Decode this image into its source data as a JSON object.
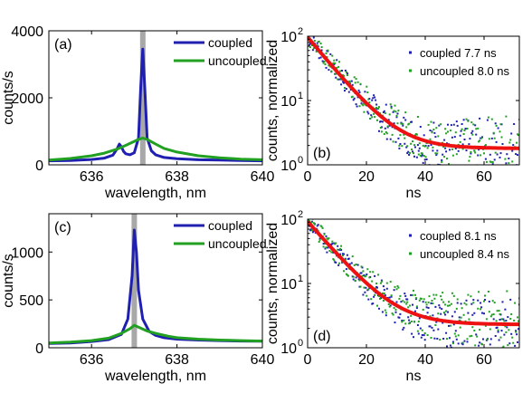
{
  "colors": {
    "coupled": "#1f1fb0",
    "uncoupled": "#22a022",
    "fit": "#ee1111",
    "marker": "#a8a8a8"
  },
  "chart_data": [
    {
      "id": "a",
      "type": "line",
      "panel_label": "(a)",
      "xlabel": "wavelength, nm",
      "ylabel": "counts/s",
      "xlim": [
        635,
        640
      ],
      "ylim": [
        0,
        4000
      ],
      "xticks": [
        636,
        638,
        640
      ],
      "yticks": [
        0,
        2000,
        4000
      ],
      "marker_x": 637.2,
      "legend": {
        "position": "top-right",
        "entries": [
          {
            "name": "coupled",
            "color": "#1f1fb0"
          },
          {
            "name": "uncoupled",
            "color": "#22a022"
          }
        ]
      },
      "series": [
        {
          "name": "coupled",
          "color": "#1f1fb0",
          "style": "line",
          "x": [
            635,
            635.5,
            636,
            636.3,
            636.5,
            636.6,
            636.65,
            636.7,
            636.75,
            636.8,
            636.9,
            637,
            637.1,
            637.15,
            637.2,
            637.25,
            637.3,
            637.4,
            637.5,
            637.7,
            638,
            638.5,
            639,
            639.5,
            640
          ],
          "y": [
            120,
            130,
            160,
            200,
            290,
            480,
            620,
            540,
            400,
            330,
            300,
            360,
            800,
            2300,
            3450,
            2200,
            800,
            420,
            300,
            220,
            180,
            150,
            140,
            130,
            120
          ]
        },
        {
          "name": "uncoupled",
          "color": "#22a022",
          "style": "line",
          "x": [
            635,
            635.5,
            636,
            636.3,
            636.6,
            636.8,
            637,
            637.1,
            637.2,
            637.3,
            637.5,
            637.7,
            638,
            638.5,
            639,
            639.5,
            640
          ],
          "y": [
            140,
            190,
            270,
            350,
            470,
            580,
            700,
            760,
            800,
            760,
            620,
            490,
            380,
            270,
            210,
            170,
            150
          ]
        }
      ]
    },
    {
      "id": "b",
      "type": "scatter",
      "panel_label": "(b)",
      "xlabel": "ns",
      "ylabel": "counts, normalized",
      "xlim": [
        0,
        72
      ],
      "ylim": [
        1,
        100
      ],
      "yscale": "log",
      "xticks": [
        0,
        20,
        40,
        60
      ],
      "yticks": [
        1,
        10,
        100
      ],
      "ytick_labels": [
        "10",
        "10",
        "10"
      ],
      "ytick_exponents": [
        "0",
        "1",
        "2"
      ],
      "legend": {
        "position": "top-right",
        "entries": [
          {
            "name": "coupled 7.7 ns",
            "color": "#1f1fb0"
          },
          {
            "name": "uncoupled 8.0 ns",
            "color": "#22a022"
          }
        ]
      },
      "series": [
        {
          "name": "coupled 7.7 ns",
          "color": "#1f1fb0",
          "style": "points",
          "tau": 7.7,
          "amp": 97,
          "floor": 1.8
        },
        {
          "name": "uncoupled 8.0 ns",
          "color": "#22a022",
          "style": "points",
          "tau": 8.0,
          "amp": 97,
          "floor": 1.9
        },
        {
          "name": "fit",
          "color": "#ee1111",
          "style": "fit",
          "tau": 7.8,
          "amp": 95,
          "floor": 1.8
        }
      ]
    },
    {
      "id": "c",
      "type": "line",
      "panel_label": "(c)",
      "xlabel": "wavelength, nm",
      "ylabel": "counts/s",
      "xlim": [
        635,
        640
      ],
      "ylim": [
        0,
        1400
      ],
      "xticks": [
        636,
        638,
        640
      ],
      "yticks": [
        0,
        500,
        1000
      ],
      "marker_x": 637.0,
      "legend": {
        "position": "top-right",
        "entries": [
          {
            "name": "coupled",
            "color": "#1f1fb0"
          },
          {
            "name": "uncoupled",
            "color": "#22a022"
          }
        ]
      },
      "series": [
        {
          "name": "coupled",
          "color": "#1f1fb0",
          "style": "line",
          "x": [
            635,
            635.5,
            636,
            636.4,
            636.7,
            636.85,
            636.95,
            637,
            637.05,
            637.1,
            637.2,
            637.35,
            637.5,
            637.7,
            638,
            638.5,
            639,
            639.5,
            640
          ],
          "y": [
            45,
            50,
            65,
            85,
            140,
            300,
            750,
            1230,
            1000,
            600,
            300,
            170,
            130,
            105,
            90,
            80,
            75,
            70,
            68
          ]
        },
        {
          "name": "uncoupled",
          "color": "#22a022",
          "style": "line",
          "x": [
            635,
            635.5,
            636,
            636.4,
            636.7,
            636.9,
            637,
            637.1,
            637.3,
            637.5,
            637.8,
            638,
            638.5,
            639,
            639.5,
            640
          ],
          "y": [
            50,
            60,
            75,
            100,
            150,
            200,
            235,
            215,
            175,
            150,
            120,
            105,
            90,
            80,
            75,
            70
          ]
        }
      ]
    },
    {
      "id": "d",
      "type": "scatter",
      "panel_label": "(d)",
      "xlabel": "ns",
      "ylabel": "counts, normalized",
      "xlim": [
        0,
        72
      ],
      "ylim": [
        1,
        100
      ],
      "yscale": "log",
      "xticks": [
        0,
        20,
        40,
        60
      ],
      "yticks": [
        1,
        10,
        100
      ],
      "ytick_labels": [
        "10",
        "10",
        "10"
      ],
      "ytick_exponents": [
        "0",
        "1",
        "2"
      ],
      "legend": {
        "position": "top-right",
        "entries": [
          {
            "name": "coupled 8.1 ns",
            "color": "#1f1fb0"
          },
          {
            "name": "uncoupled 8.4 ns",
            "color": "#22a022"
          }
        ]
      },
      "series": [
        {
          "name": "coupled 8.1 ns",
          "color": "#1f1fb0",
          "style": "points",
          "tau": 8.1,
          "amp": 92,
          "floor": 2.0
        },
        {
          "name": "uncoupled 8.4 ns",
          "color": "#22a022",
          "style": "points",
          "tau": 8.4,
          "amp": 92,
          "floor": 2.6
        },
        {
          "name": "fit",
          "color": "#ee1111",
          "style": "fit",
          "tau": 8.2,
          "amp": 90,
          "floor": 2.3
        }
      ]
    }
  ]
}
